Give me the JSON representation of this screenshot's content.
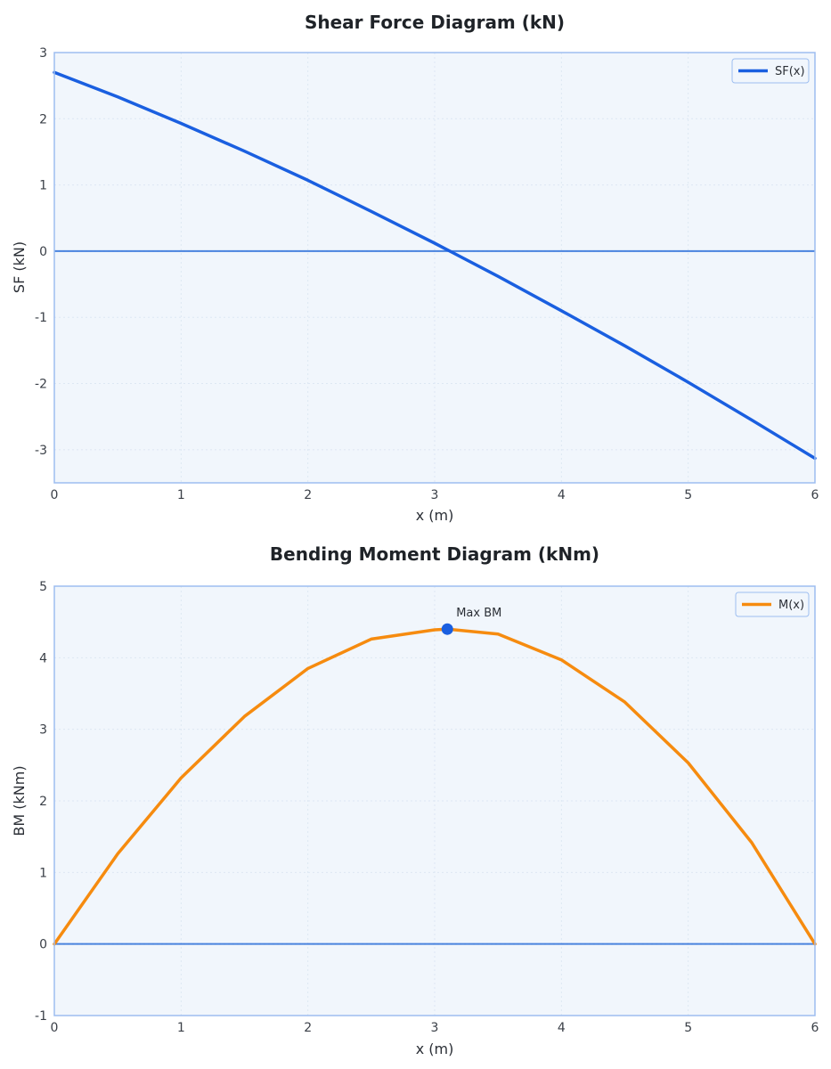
{
  "chart_data": [
    {
      "type": "line",
      "title": "Shear Force Diagram (kN)",
      "xlabel": "x (m)",
      "ylabel": "SF (kN)",
      "xlim": [
        0,
        6
      ],
      "ylim": [
        -3.5,
        3
      ],
      "xticks": [
        0,
        1,
        2,
        3,
        4,
        5,
        6
      ],
      "yticks": [
        3,
        2,
        1,
        0,
        -1,
        -2,
        -3
      ],
      "grid": true,
      "zero_line": true,
      "legend_position": "top-right",
      "series": [
        {
          "name": "SF(x)",
          "color": "#1a5fe0",
          "x": [
            0,
            0.5,
            1,
            1.5,
            2,
            2.5,
            3,
            3.1,
            3.5,
            4,
            4.5,
            5,
            5.5,
            6
          ],
          "y": [
            2.7,
            2.33,
            1.93,
            1.51,
            1.07,
            0.6,
            0.12,
            0.02,
            -0.38,
            -0.9,
            -1.43,
            -1.98,
            -2.55,
            -3.13
          ]
        }
      ]
    },
    {
      "type": "line",
      "title": "Bending Moment Diagram (kNm)",
      "xlabel": "x (m)",
      "ylabel": "BM (kNm)",
      "xlim": [
        0,
        6
      ],
      "ylim": [
        -1,
        5
      ],
      "xticks": [
        0,
        1,
        2,
        3,
        4,
        5,
        6
      ],
      "yticks": [
        5,
        4,
        3,
        2,
        1,
        0,
        -1
      ],
      "grid": true,
      "zero_line": true,
      "legend_position": "top-right",
      "series": [
        {
          "name": "M(x)",
          "color": "#f68b0f",
          "x": [
            0,
            0.5,
            1,
            1.5,
            2,
            2.5,
            3,
            3.1,
            3.5,
            4,
            4.5,
            5,
            5.5,
            6
          ],
          "y": [
            0,
            1.26,
            2.32,
            3.18,
            3.85,
            4.26,
            4.39,
            4.4,
            4.33,
            3.97,
            3.38,
            2.53,
            1.42,
            0
          ]
        }
      ],
      "annotations": [
        {
          "label": "Max BM",
          "x": 3.1,
          "y": 4.4,
          "marker_color": "#1a5fe0"
        }
      ]
    }
  ],
  "colors": {
    "plot_background": "#f1f6fc",
    "plot_border": "#9dbdf0",
    "zero_line": "#2c6fd8",
    "grid": "#dde7f3"
  }
}
